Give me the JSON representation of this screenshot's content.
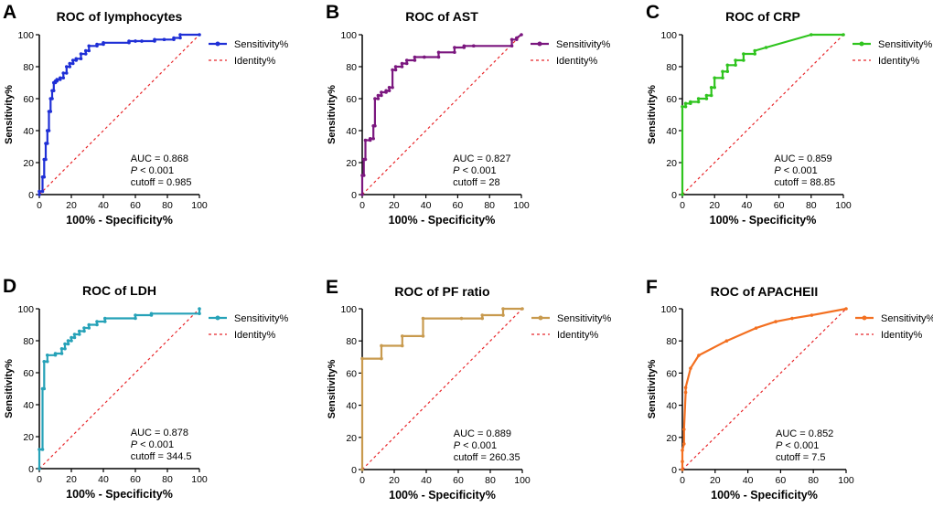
{
  "chart_data": [
    {
      "type": "line",
      "letter": "A",
      "title": "ROC of lymphocytes",
      "xlabel": "100% - Specificity%",
      "ylabel": "Sensitivity%",
      "xlim": [
        0,
        100
      ],
      "ylim": [
        0,
        100
      ],
      "xticks": [
        0,
        20,
        40,
        60,
        80,
        100
      ],
      "yticks": [
        0,
        20,
        40,
        60,
        80,
        100
      ],
      "color": "#1f2fd6",
      "series": [
        {
          "name": "Sensitivity%",
          "x": [
            0,
            0,
            2,
            2,
            3,
            3,
            4,
            4,
            5,
            5,
            6,
            6,
            7,
            7,
            8,
            8,
            9,
            9,
            10,
            10,
            11,
            11,
            13,
            13,
            15,
            15,
            17,
            17,
            19,
            19,
            21,
            21,
            23,
            23,
            26,
            26,
            29,
            29,
            31,
            31,
            36,
            36,
            40,
            40,
            56,
            56,
            60,
            60,
            64,
            64,
            72,
            72,
            78,
            78,
            84,
            84,
            88,
            88,
            100
          ],
          "y": [
            0,
            2,
            2,
            11,
            11,
            22,
            22,
            32,
            32,
            40,
            40,
            52,
            52,
            60,
            60,
            65,
            65,
            70,
            70,
            71,
            71,
            72,
            72,
            73,
            73,
            76,
            76,
            80,
            80,
            82,
            82,
            84,
            84,
            85,
            85,
            88,
            88,
            90,
            90,
            93,
            93,
            94,
            94,
            95,
            95,
            96,
            96,
            96,
            96,
            96,
            96,
            97,
            97,
            97,
            97,
            98,
            98,
            100,
            100
          ]
        },
        {
          "name": "Identity%",
          "x": [
            0,
            100
          ],
          "y": [
            0,
            100
          ]
        }
      ],
      "annotations": {
        "auc": "AUC = 0.868",
        "p_italic": "P",
        "p_rest": " < 0.001",
        "cutoff": "cutoff = 0.985"
      }
    },
    {
      "type": "line",
      "letter": "B",
      "title": "ROC of AST",
      "xlabel": "100% - Specificity%",
      "ylabel": "Sensitivity%",
      "xlim": [
        0,
        100
      ],
      "ylim": [
        0,
        100
      ],
      "xticks": [
        0,
        20,
        40,
        60,
        80,
        100
      ],
      "yticks": [
        0,
        20,
        40,
        60,
        80,
        100
      ],
      "color": "#7b177f",
      "series": [
        {
          "name": "Sensitivity%",
          "x": [
            0,
            0,
            1,
            1,
            2,
            2,
            5,
            5,
            7,
            7,
            8,
            8,
            10,
            10,
            12,
            12,
            15,
            15,
            17,
            17,
            19,
            19,
            21,
            21,
            25,
            25,
            28,
            28,
            33,
            33,
            39,
            39,
            48,
            48,
            58,
            58,
            64,
            64,
            70,
            70,
            94,
            94,
            97,
            97,
            100
          ],
          "y": [
            0,
            12,
            12,
            22,
            22,
            34,
            34,
            35,
            35,
            43,
            43,
            60,
            60,
            62,
            62,
            64,
            64,
            65,
            65,
            67,
            67,
            78,
            78,
            80,
            80,
            82,
            82,
            84,
            84,
            86,
            86,
            86,
            86,
            89,
            89,
            92,
            92,
            93,
            93,
            93,
            93,
            97,
            97,
            98,
            100
          ]
        },
        {
          "name": "Identity%",
          "x": [
            0,
            100
          ],
          "y": [
            0,
            100
          ]
        }
      ],
      "annotations": {
        "auc": "AUC = 0.827",
        "p_italic": "P",
        "p_rest": " < 0.001",
        "cutoff": "cutoff = 28"
      }
    },
    {
      "type": "line",
      "letter": "C",
      "title": "ROC of CRP",
      "xlabel": "100% - Specificity%",
      "ylabel": "Sensitivity%",
      "xlim": [
        0,
        100
      ],
      "ylim": [
        0,
        100
      ],
      "xticks": [
        0,
        20,
        40,
        60,
        80,
        100
      ],
      "yticks": [
        0,
        20,
        40,
        60,
        80,
        100
      ],
      "color": "#2fc41e",
      "series": [
        {
          "name": "Sensitivity%",
          "x": [
            0,
            0,
            2,
            2,
            5,
            5,
            10,
            10,
            15,
            15,
            18,
            18,
            20,
            20,
            25,
            25,
            28,
            28,
            33,
            33,
            38,
            38,
            45,
            45,
            52,
            80,
            100
          ],
          "y": [
            0,
            55,
            55,
            57,
            57,
            58,
            58,
            60,
            60,
            62,
            62,
            67,
            67,
            73,
            73,
            77,
            77,
            81,
            81,
            84,
            84,
            88,
            88,
            90,
            92,
            100,
            100
          ]
        },
        {
          "name": "Identity%",
          "x": [
            0,
            100
          ],
          "y": [
            0,
            100
          ]
        }
      ],
      "annotations": {
        "auc": "AUC = 0.859",
        "p_italic": "P",
        "p_rest": " < 0.001",
        "cutoff": "cutoff = 88.85"
      }
    },
    {
      "type": "line",
      "letter": "D",
      "title": "ROC of LDH",
      "xlabel": "100% - Specificity%",
      "ylabel": "Sensitivity%",
      "xlim": [
        0,
        100
      ],
      "ylim": [
        0,
        100
      ],
      "xticks": [
        0,
        20,
        40,
        60,
        80,
        100
      ],
      "yticks": [
        0,
        20,
        40,
        60,
        80,
        100
      ],
      "color": "#26a2b8",
      "series": [
        {
          "name": "Sensitivity%",
          "x": [
            0,
            0,
            2,
            2,
            3,
            3,
            5,
            5,
            10,
            10,
            14,
            14,
            16,
            16,
            18,
            18,
            20,
            20,
            22,
            22,
            25,
            25,
            28,
            28,
            31,
            31,
            36,
            36,
            41,
            41,
            60,
            60,
            70,
            70,
            100,
            100
          ],
          "y": [
            0,
            12,
            12,
            50,
            50,
            67,
            67,
            71,
            71,
            72,
            72,
            75,
            75,
            78,
            78,
            80,
            80,
            82,
            82,
            84,
            84,
            86,
            86,
            88,
            88,
            90,
            90,
            92,
            92,
            94,
            94,
            96,
            96,
            97,
            97,
            100
          ]
        },
        {
          "name": "Identity%",
          "x": [
            0,
            100
          ],
          "y": [
            0,
            100
          ]
        }
      ],
      "annotations": {
        "auc": "AUC = 0.878",
        "p_italic": "P",
        "p_rest": " < 0.001",
        "cutoff": "cutoff = 344.5"
      }
    },
    {
      "type": "line",
      "letter": "E",
      "title": "ROC of PF ratio",
      "xlabel": "100% - Specificity%",
      "ylabel": "Sensitivity%",
      "xlim": [
        0,
        100
      ],
      "ylim": [
        0,
        100
      ],
      "xticks": [
        0,
        20,
        40,
        60,
        80,
        100
      ],
      "yticks": [
        0,
        20,
        40,
        60,
        80,
        100
      ],
      "color": "#c89a4e",
      "series": [
        {
          "name": "Sensitivity%",
          "x": [
            0,
            0,
            12,
            12,
            25,
            25,
            38,
            38,
            62,
            75,
            75,
            88,
            88,
            100
          ],
          "y": [
            0,
            69,
            69,
            77,
            77,
            83,
            83,
            94,
            94,
            94,
            96,
            96,
            100,
            100
          ]
        },
        {
          "name": "Identity%",
          "x": [
            0,
            100
          ],
          "y": [
            0,
            100
          ]
        }
      ],
      "annotations": {
        "auc": "AUC = 0.889",
        "p_italic": "P",
        "p_rest": " < 0.001",
        "cutoff": "cutoff = 260.35"
      }
    },
    {
      "type": "line",
      "letter": "F",
      "title": "ROC of APACHEII",
      "xlabel": "100% - Specificity%",
      "ylabel": "Sensitivity%",
      "xlim": [
        0,
        100
      ],
      "ylim": [
        0,
        100
      ],
      "xticks": [
        0,
        20,
        40,
        60,
        80,
        100
      ],
      "yticks": [
        0,
        20,
        40,
        60,
        80,
        100
      ],
      "color": "#f37021",
      "series": [
        {
          "name": "Sensitivity%",
          "x": [
            0,
            0,
            0,
            1,
            1,
            2,
            2,
            5,
            10,
            27,
            45,
            57,
            67,
            79,
            100
          ],
          "y": [
            0,
            5,
            12,
            16,
            25,
            48,
            51,
            63,
            71,
            80,
            88,
            92,
            94,
            96,
            100
          ]
        },
        {
          "name": "Identity%",
          "x": [
            0,
            100
          ],
          "y": [
            0,
            100
          ]
        }
      ],
      "annotations": {
        "auc": "AUC = 0.852",
        "p_italic": "P",
        "p_rest": " < 0.001",
        "cutoff": "cutoff = 7.5"
      }
    }
  ],
  "identity_color": "#e8262a",
  "axis_color": "#000000"
}
